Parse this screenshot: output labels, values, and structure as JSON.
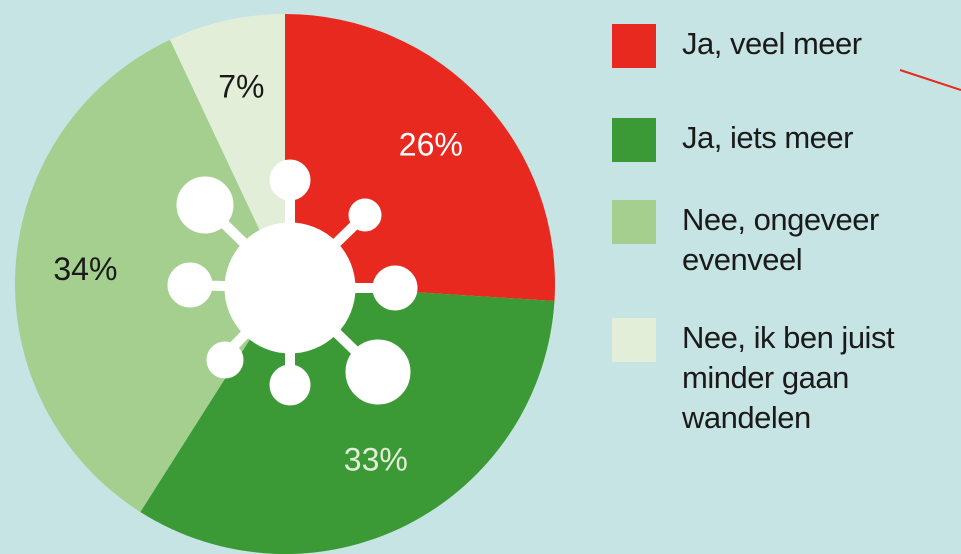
{
  "chart_data": {
    "type": "pie",
    "categories": [
      "Ja, veel meer",
      "Ja, iets meer",
      "Nee, ongeveer evenveel",
      "Nee, ik ben juist minder gaan wandelen"
    ],
    "values": [
      26,
      33,
      34,
      7
    ],
    "value_labels": [
      "26%",
      "33%",
      "34%",
      "7%"
    ],
    "colors": [
      "#e8291f",
      "#3b9a36",
      "#a4cf8f",
      "#e3eed9"
    ]
  }
}
